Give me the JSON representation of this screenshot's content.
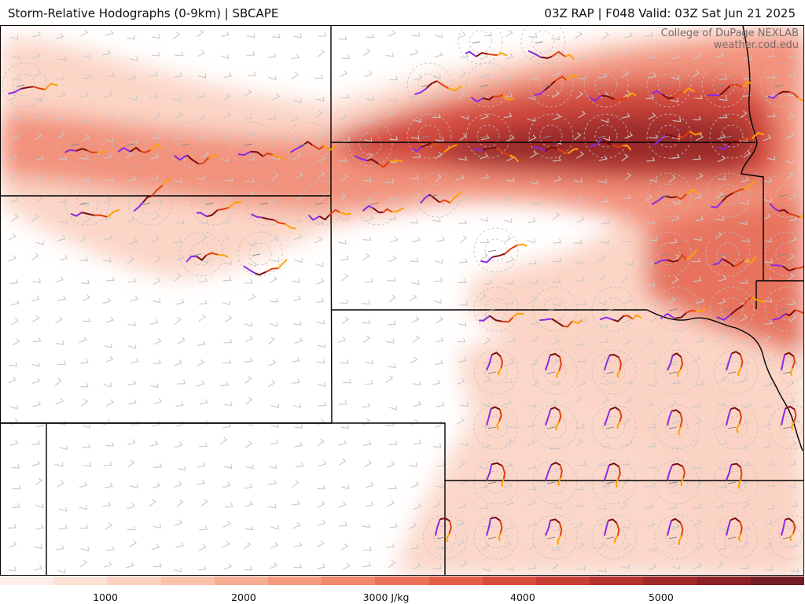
{
  "header": {
    "left_title": "Storm-Relative Hodographs (0-9km) | SBCAPE",
    "right_title": "03Z RAP | F048 Valid: 03Z Sat Jun 21 2025"
  },
  "credit": {
    "line1": "College of DuPage NEXLAB",
    "line2": "weather.cod.edu"
  },
  "colorbar": {
    "colors": [
      "#fdeee8",
      "#fce0d4",
      "#fbd0c0",
      "#f9c0aa",
      "#f7ad94",
      "#f49a80",
      "#f0866c",
      "#eb7258",
      "#e35f48",
      "#d84c3c",
      "#c93e34",
      "#b6322d",
      "#a02828",
      "#8a2126",
      "#741c24"
    ],
    "ticks": [
      {
        "label": "1000",
        "pct": 13.1
      },
      {
        "label": "2000",
        "pct": 30.3
      },
      {
        "label": "3000 J/kg",
        "pct": 48.0
      },
      {
        "label": "4000",
        "pct": 65.0
      },
      {
        "label": "5000",
        "pct": 82.2
      }
    ]
  }
}
